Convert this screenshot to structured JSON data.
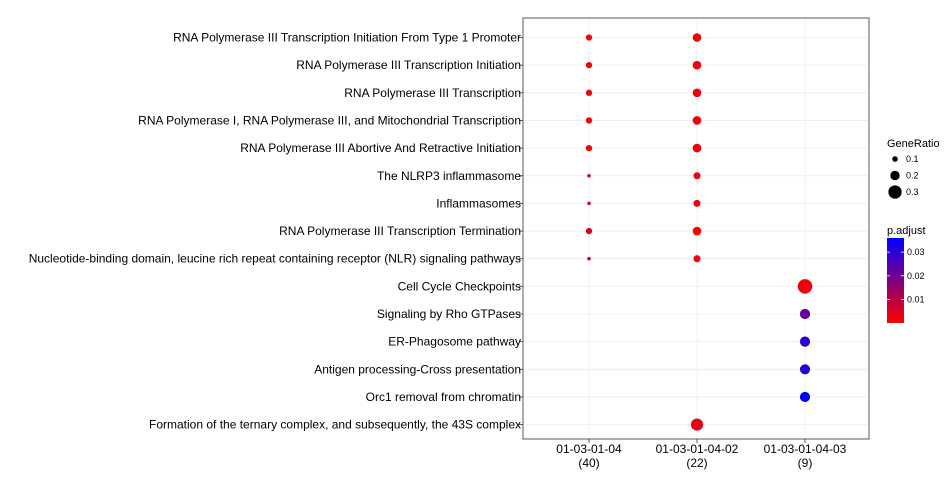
{
  "chart_data": {
    "type": "scatter",
    "subtype": "dotplot",
    "clusters": [
      {
        "label": "01-03-01-04",
        "count": "(40)"
      },
      {
        "label": "01-03-01-04-02",
        "count": "(22)"
      },
      {
        "label": "01-03-01-04-03",
        "count": "(9)"
      }
    ],
    "terms": [
      "RNA Polymerase III Transcription Initiation From Type 1 Promoter",
      "RNA Polymerase III Transcription Initiation",
      "RNA Polymerase III Transcription",
      "RNA Polymerase I, RNA Polymerase III, and Mitochondrial Transcription",
      "RNA Polymerase III Abortive And Retractive Initiation",
      "The NLRP3 inflammasome",
      "Inflammasomes",
      "RNA Polymerase III Transcription Termination",
      "Nucleotide-binding domain, leucine rich repeat containing receptor (NLR) signaling pathways",
      "Cell Cycle Checkpoints",
      "Signaling by Rho GTPases",
      "ER-Phagosome pathway",
      "Antigen processing-Cross presentation",
      "Orc1 removal from chromatin",
      "Formation of the ternary complex, and subsequently, the 43S complex"
    ],
    "points": [
      {
        "term": 0,
        "cluster": 0,
        "gene_ratio": 0.12,
        "p_adjust": 0.001
      },
      {
        "term": 1,
        "cluster": 0,
        "gene_ratio": 0.12,
        "p_adjust": 0.001
      },
      {
        "term": 2,
        "cluster": 0,
        "gene_ratio": 0.12,
        "p_adjust": 0.001
      },
      {
        "term": 3,
        "cluster": 0,
        "gene_ratio": 0.12,
        "p_adjust": 0.001
      },
      {
        "term": 4,
        "cluster": 0,
        "gene_ratio": 0.12,
        "p_adjust": 0.001
      },
      {
        "term": 5,
        "cluster": 0,
        "gene_ratio": 0.05,
        "p_adjust": 0.006
      },
      {
        "term": 6,
        "cluster": 0,
        "gene_ratio": 0.05,
        "p_adjust": 0.006
      },
      {
        "term": 7,
        "cluster": 0,
        "gene_ratio": 0.12,
        "p_adjust": 0.006
      },
      {
        "term": 8,
        "cluster": 0,
        "gene_ratio": 0.05,
        "p_adjust": 0.006
      },
      {
        "term": 0,
        "cluster": 1,
        "gene_ratio": 0.18,
        "p_adjust": 0.002
      },
      {
        "term": 1,
        "cluster": 1,
        "gene_ratio": 0.18,
        "p_adjust": 0.002
      },
      {
        "term": 2,
        "cluster": 1,
        "gene_ratio": 0.18,
        "p_adjust": 0.002
      },
      {
        "term": 3,
        "cluster": 1,
        "gene_ratio": 0.18,
        "p_adjust": 0.002
      },
      {
        "term": 4,
        "cluster": 1,
        "gene_ratio": 0.18,
        "p_adjust": 0.002
      },
      {
        "term": 5,
        "cluster": 1,
        "gene_ratio": 0.14,
        "p_adjust": 0.002
      },
      {
        "term": 6,
        "cluster": 1,
        "gene_ratio": 0.14,
        "p_adjust": 0.002
      },
      {
        "term": 7,
        "cluster": 1,
        "gene_ratio": 0.18,
        "p_adjust": 0.0
      },
      {
        "term": 8,
        "cluster": 1,
        "gene_ratio": 0.14,
        "p_adjust": 0.002
      },
      {
        "term": 14,
        "cluster": 1,
        "gene_ratio": 0.27,
        "p_adjust": 0.003
      },
      {
        "term": 9,
        "cluster": 2,
        "gene_ratio": 0.33,
        "p_adjust": 0.002
      },
      {
        "term": 10,
        "cluster": 2,
        "gene_ratio": 0.22,
        "p_adjust": 0.022
      },
      {
        "term": 11,
        "cluster": 2,
        "gene_ratio": 0.22,
        "p_adjust": 0.03
      },
      {
        "term": 12,
        "cluster": 2,
        "gene_ratio": 0.22,
        "p_adjust": 0.03
      },
      {
        "term": 13,
        "cluster": 2,
        "gene_ratio": 0.22,
        "p_adjust": 0.036
      }
    ],
    "legend_size": {
      "title": "GeneRatio",
      "breaks": [
        0.1,
        0.2,
        0.3
      ],
      "labels": [
        "0.1",
        "0.2",
        "0.3"
      ]
    },
    "legend_color": {
      "title": "p.adjust",
      "breaks": [
        0.01,
        0.02,
        0.03
      ],
      "labels": [
        "0.01",
        "0.02",
        "0.03"
      ],
      "range": [
        0.0,
        0.036
      ],
      "low_color": "#FF0000",
      "high_color": "#0000FF"
    },
    "grid": true,
    "legend_position": "right"
  }
}
